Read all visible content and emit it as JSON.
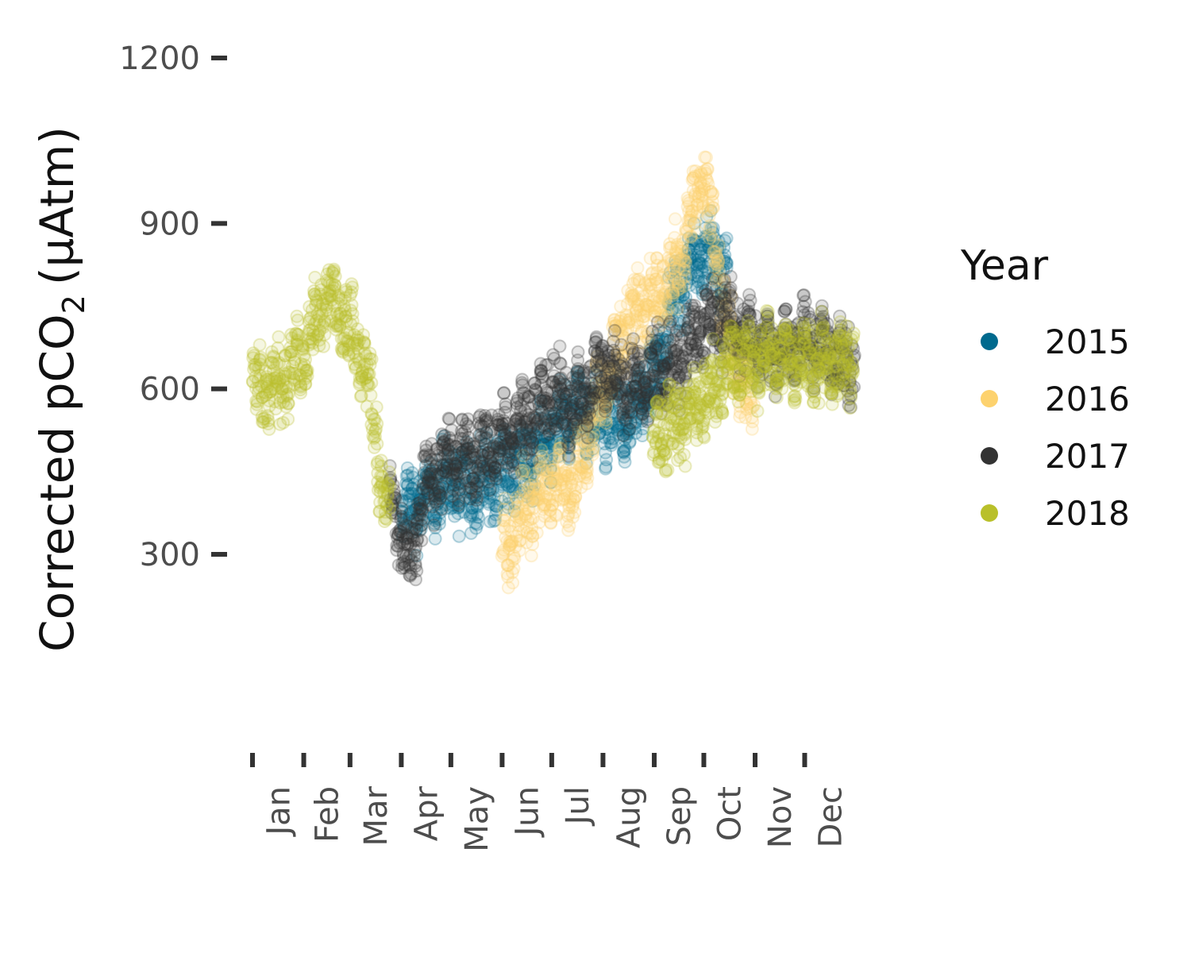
{
  "chart_data": {
    "type": "scatter",
    "title": "",
    "xlabel": "",
    "ylabel": "Corrected pCO",
    "ylabel_subscript": "2",
    "ylabel_unit": "(µAtm)",
    "y_ticks": [
      300,
      600,
      900,
      1200
    ],
    "ylim": [
      60,
      1230
    ],
    "x_categories": [
      "Jan",
      "Feb",
      "Mar",
      "Apr",
      "May",
      "Jun",
      "Jul",
      "Aug",
      "Sep",
      "Oct",
      "Nov",
      "Dec"
    ],
    "xlim": [
      "Jan 1",
      "Dec 31"
    ],
    "grid": false,
    "legend": {
      "title": "Year",
      "position": "right"
    },
    "series": [
      {
        "name": "2015",
        "color": "#006a8e",
        "x_start": "Apr 1",
        "x_end": "Oct 15",
        "trend": [
          [
            "Apr 1",
            380
          ],
          [
            "Apr 15",
            400
          ],
          [
            "May 1",
            430
          ],
          [
            "May 15",
            420
          ],
          [
            "Jun 1",
            450
          ],
          [
            "Jun 15",
            470
          ],
          [
            "Jul 1",
            510
          ],
          [
            "Jul 15",
            560
          ],
          [
            "Aug 1",
            550
          ],
          [
            "Aug 15",
            540
          ],
          [
            "Sep 1",
            620
          ],
          [
            "Sep 15",
            780
          ],
          [
            "Oct 1",
            850
          ],
          [
            "Oct 15",
            820
          ]
        ]
      },
      {
        "name": "2016",
        "color": "#fdd26e",
        "x_start": "Jun 1",
        "x_end": "Oct 31",
        "trend": [
          [
            "Jun 1",
            300
          ],
          [
            "Jun 15",
            380
          ],
          [
            "Jul 1",
            430
          ],
          [
            "Jul 15",
            420
          ],
          [
            "Aug 1",
            600
          ],
          [
            "Aug 15",
            720
          ],
          [
            "Sep 1",
            760
          ],
          [
            "Sep 15",
            820
          ],
          [
            "Oct 1",
            1000
          ],
          [
            "Oct 15",
            700
          ],
          [
            "Oct 31",
            560
          ]
        ]
      },
      {
        "name": "2017",
        "color": "#333333",
        "x_start": "Mar 25",
        "x_end": "Dec 31",
        "trend": [
          [
            "Mar 25",
            420
          ],
          [
            "Apr 1",
            340
          ],
          [
            "Apr 5",
            270
          ],
          [
            "Apr 15",
            420
          ],
          [
            "May 1",
            480
          ],
          [
            "May 15",
            470
          ],
          [
            "Jun 1",
            510
          ],
          [
            "Jun 15",
            540
          ],
          [
            "Jul 1",
            590
          ],
          [
            "Jul 15",
            560
          ],
          [
            "Aug 1",
            640
          ],
          [
            "Aug 15",
            600
          ],
          [
            "Sep 1",
            620
          ],
          [
            "Sep 15",
            650
          ],
          [
            "Oct 1",
            720
          ],
          [
            "Oct 15",
            730
          ],
          [
            "Nov 1",
            680
          ],
          [
            "Nov 15",
            670
          ],
          [
            "Dec 1",
            690
          ],
          [
            "Dec 31",
            640
          ]
        ]
      },
      {
        "name": "2018",
        "color": "#b9c02a",
        "x_start": "Jan 1",
        "x_end": "Dec 31",
        "gap": [
          "Mar 25",
          "Aug 31"
        ],
        "trend": [
          [
            "Jan 1",
            610
          ],
          [
            "Jan 15",
            600
          ],
          [
            "Feb 1",
            660
          ],
          [
            "Feb 15",
            780
          ],
          [
            "Mar 1",
            700
          ],
          [
            "Mar 10",
            650
          ],
          [
            "Mar 20",
            430
          ],
          [
            "Mar 25",
            360
          ],
          [
            "Aug 31",
            510
          ],
          [
            "Sep 15",
            540
          ],
          [
            "Oct 1",
            580
          ],
          [
            "Oct 15",
            640
          ],
          [
            "Nov 1",
            650
          ],
          [
            "Nov 15",
            660
          ],
          [
            "Dec 1",
            650
          ],
          [
            "Dec 31",
            650
          ]
        ]
      }
    ]
  }
}
